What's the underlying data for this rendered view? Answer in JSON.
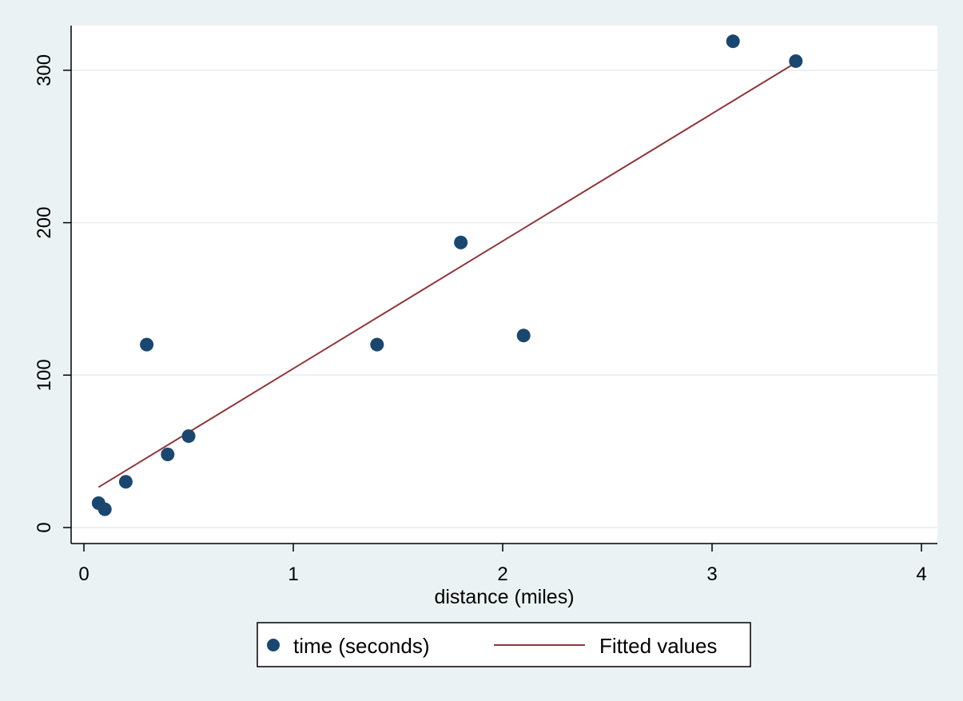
{
  "chart_data": {
    "type": "scatter",
    "title": "",
    "xlabel": "distance (miles)",
    "ylabel": "",
    "xlim": [
      0,
      4
    ],
    "ylim": [
      0,
      300
    ],
    "x_ticks": [
      "0",
      "1",
      "2",
      "3",
      "4"
    ],
    "y_ticks": [
      "0",
      "100",
      "200",
      "300"
    ],
    "grid": "horizontal",
    "legend_position": "bottom",
    "series": [
      {
        "name": "time (seconds)",
        "kind": "scatter",
        "color": "#1a476f",
        "points": [
          {
            "x": 0.07,
            "y": 16
          },
          {
            "x": 0.1,
            "y": 12
          },
          {
            "x": 0.2,
            "y": 30
          },
          {
            "x": 0.3,
            "y": 120
          },
          {
            "x": 0.4,
            "y": 48
          },
          {
            "x": 0.5,
            "y": 60
          },
          {
            "x": 1.4,
            "y": 120
          },
          {
            "x": 1.8,
            "y": 187
          },
          {
            "x": 2.1,
            "y": 126
          },
          {
            "x": 3.1,
            "y": 319
          },
          {
            "x": 3.4,
            "y": 306
          }
        ]
      },
      {
        "name": "Fitted values",
        "kind": "line",
        "color": "#90353b",
        "points": [
          {
            "x": 0.07,
            "y": 26.5
          },
          {
            "x": 3.4,
            "y": 305
          }
        ]
      }
    ]
  },
  "colors": {
    "background": "#eaf2f3",
    "plot_area": "#ffffff",
    "gridline": "#eaf2f3",
    "marker": "#1a476f",
    "fit_line": "#90353b"
  }
}
